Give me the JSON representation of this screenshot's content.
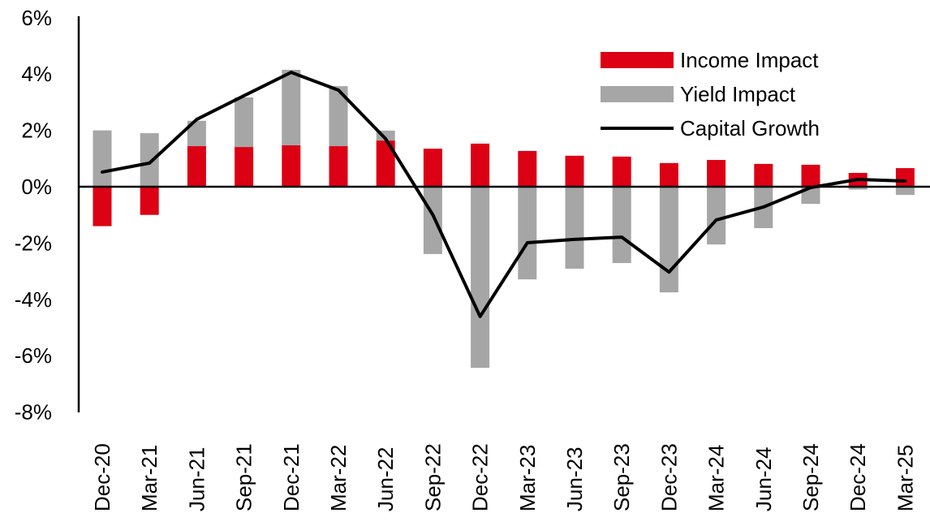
{
  "chart_data": {
    "type": "bar",
    "title": "",
    "xlabel": "",
    "ylabel": "",
    "ylim": [
      -8,
      6
    ],
    "yticks": [
      "6%",
      "4%",
      "2%",
      "0%",
      "-2%",
      "-4%",
      "-6%",
      "-8%"
    ],
    "ytick_values": [
      6,
      4,
      2,
      0,
      -2,
      -4,
      -6,
      -8
    ],
    "grid": false,
    "legend_position": "top-right",
    "categories": [
      "Dec-20",
      "Mar-21",
      "Jun-21",
      "Sep-21",
      "Dec-21",
      "Mar-22",
      "Jun-22",
      "Sep-22",
      "Dec-22",
      "Mar-23",
      "Jun-23",
      "Sep-23",
      "Dec-23",
      "Mar-24",
      "Jun-24",
      "Sep-24",
      "Dec-24",
      "Mar-25"
    ],
    "series": [
      {
        "name": "Income Impact",
        "type": "stacked-bar",
        "color": "#dc0014",
        "values": [
          -1.4,
          -1.0,
          1.44,
          1.41,
          1.47,
          1.44,
          1.64,
          1.35,
          1.53,
          1.27,
          1.1,
          1.07,
          0.84,
          0.95,
          0.81,
          0.78,
          0.49,
          0.66
        ]
      },
      {
        "name": "Yield Impact",
        "type": "stacked-bar",
        "color": "#a6a6a6",
        "values": [
          2.0,
          1.9,
          0.9,
          1.76,
          2.68,
          2.13,
          0.35,
          -2.39,
          -6.43,
          -3.29,
          -2.91,
          -2.71,
          -3.75,
          -2.05,
          -1.47,
          -0.61,
          -0.1,
          -0.29
        ]
      },
      {
        "name": "Capital Growth",
        "type": "line",
        "color": "#000000",
        "values": [
          0.52,
          0.84,
          2.39,
          3.23,
          4.06,
          3.43,
          1.7,
          -1.0,
          -4.61,
          -1.99,
          -1.87,
          -1.79,
          -3.03,
          -1.18,
          -0.72,
          -0.03,
          0.26,
          0.2
        ]
      }
    ]
  }
}
